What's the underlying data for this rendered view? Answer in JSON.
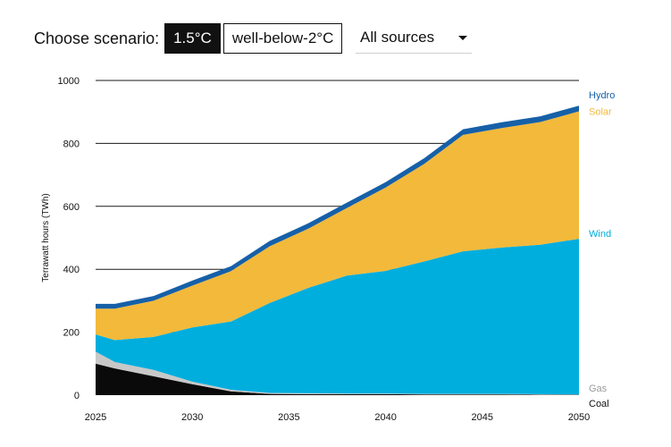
{
  "controls": {
    "choose_label": "Choose scenario:",
    "scenarios": [
      "1.5°C",
      "well-below-2°C"
    ],
    "active_scenario": "1.5°C",
    "source_select": "All sources"
  },
  "colors": {
    "coal": "#0a0a0a",
    "gas": "#c8c8c8",
    "wind": "#00aede",
    "solar": "#f2b93b",
    "hydro": "#1660a8",
    "gas_label": "#9a9a9a",
    "text": "#111111"
  },
  "chart_data": {
    "type": "area",
    "stacked": true,
    "ylabel": "Terrawatt hours (TWh)",
    "xlabel": "",
    "xlim": [
      2025,
      2050
    ],
    "ylim": [
      0,
      1000
    ],
    "yticks": [
      0,
      200,
      400,
      600,
      800,
      1000
    ],
    "xticks": [
      2025,
      2030,
      2035,
      2040,
      2045,
      2050
    ],
    "grid": "horizontal",
    "x": [
      2025,
      2026,
      2028,
      2030,
      2032,
      2034,
      2036,
      2038,
      2040,
      2042,
      2044,
      2046,
      2048,
      2050
    ],
    "series": [
      {
        "name": "Coal",
        "values": [
          100,
          85,
          60,
          35,
          12,
          4,
          3,
          3,
          3,
          2,
          2,
          2,
          1,
          1
        ]
      },
      {
        "name": "Gas",
        "values": [
          38,
          20,
          20,
          8,
          5,
          3,
          3,
          2,
          2,
          2,
          2,
          2,
          2,
          1
        ]
      },
      {
        "name": "Wind",
        "values": [
          55,
          70,
          105,
          172,
          217,
          286,
          335,
          375,
          390,
          421,
          453,
          465,
          475,
          495
        ]
      },
      {
        "name": "Solar",
        "values": [
          82,
          100,
          115,
          133,
          160,
          180,
          188,
          215,
          265,
          310,
          370,
          380,
          390,
          405
        ]
      },
      {
        "name": "Hydro",
        "values": [
          15,
          15,
          15,
          16,
          16,
          17,
          17,
          17,
          17,
          18,
          18,
          18,
          18,
          18
        ]
      }
    ]
  }
}
